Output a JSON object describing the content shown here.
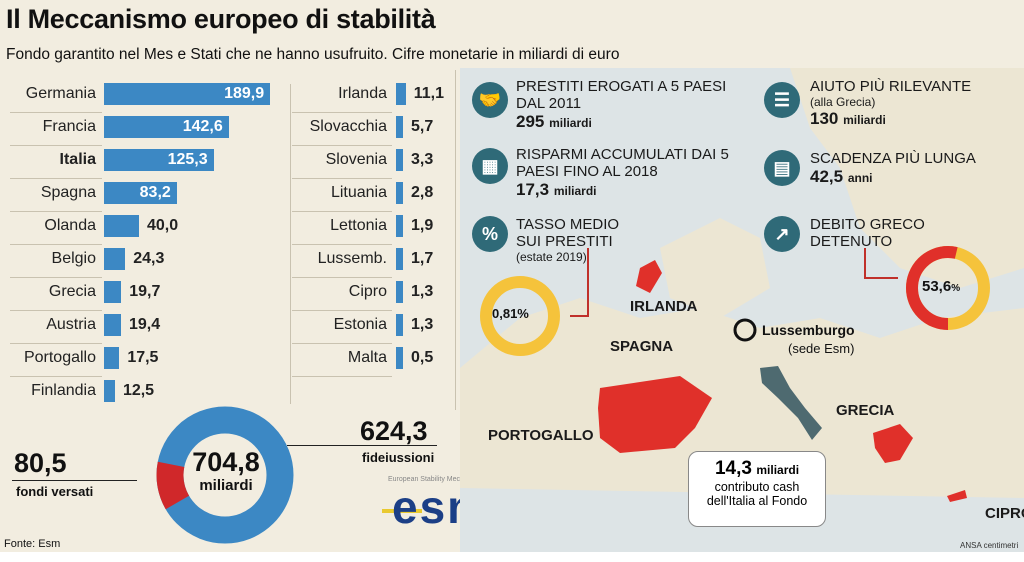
{
  "header": {
    "title": "Il Meccanismo europeo di stabilità",
    "subtitle": "Fondo garantito nel Mes e Stati che ne hanno usufruito. Cifre monetarie in miliardi di euro"
  },
  "chart_data": [
    {
      "type": "bar",
      "orientation": "horizontal",
      "categories": [
        "Germania",
        "Francia",
        "Italia",
        "Spagna",
        "Olanda",
        "Belgio",
        "Grecia",
        "Austria",
        "Portogallo",
        "Finlandia",
        "Irlanda",
        "Slovacchia",
        "Slovenia",
        "Lituania",
        "Lettonia",
        "Lussemb.",
        "Cipro",
        "Estonia",
        "Malta"
      ],
      "values": [
        189.9,
        142.6,
        125.3,
        83.2,
        40.0,
        24.3,
        19.7,
        19.4,
        17.5,
        12.5,
        11.1,
        5.7,
        3.3,
        2.8,
        1.9,
        1.7,
        1.3,
        1.3,
        0.5
      ],
      "labels": [
        "189,9",
        "142,6",
        "125,3",
        "83,2",
        "40,0",
        "24,3",
        "19,7",
        "19,4",
        "17,5",
        "12,5",
        "11,1",
        "5,7",
        "3,3",
        "2,8",
        "1,9",
        "1,7",
        "1,3",
        "1,3",
        "0,5"
      ],
      "highlight": "Italia",
      "color": "#3c88c4"
    },
    {
      "type": "pie",
      "donut": true,
      "center_value": "704,8",
      "center_unit": "miliardi",
      "slices": [
        {
          "name": "fideiussioni",
          "value": 624.3,
          "label": "624,3",
          "color": "#3c88c4"
        },
        {
          "name": "fondi versati",
          "value": 80.5,
          "label": "80,5",
          "color": "#d0282a"
        }
      ]
    },
    {
      "type": "pie",
      "donut": true,
      "name": "TASSO MEDIO SUI PRESTITI",
      "value_label": "0,81%",
      "value": 0.81,
      "color": "#f5c33b"
    },
    {
      "type": "pie",
      "donut": true,
      "name": "DEBITO GRECO DETENUTO",
      "value_label": "53,6",
      "value_unit": "%",
      "value": 53.6,
      "colors": [
        "#e0302a",
        "#f5c33b"
      ]
    }
  ],
  "stats": [
    {
      "icon": "handshake-icon",
      "heading": "PRESTITI EROGATI A 5 PAESI DAL 2011",
      "value": "295",
      "unit": "miliardi"
    },
    {
      "icon": "coins-icon",
      "heading": "RISPARMI ACCUMULATI DAI 5 PAESI FINO AL 2018",
      "value": "17,3",
      "unit": "miliardi"
    },
    {
      "icon": "percent-icon",
      "heading": "TASSO MEDIO SUI PRESTITI",
      "sub": "(estate 2019)"
    },
    {
      "icon": "greek-flag-icon",
      "heading": "AIUTO PIÙ RILEVANTE",
      "sub": "(alla Grecia)",
      "value": "130",
      "unit": "miliardi"
    },
    {
      "icon": "calendar-icon",
      "heading": "SCADENZA PIÙ LUNGA",
      "value": "42,5",
      "unit": "anni"
    },
    {
      "icon": "chart-up-icon",
      "heading": "DEBITO GRECO DETENUTO"
    }
  ],
  "map": {
    "countries": [
      "IRLANDA",
      "SPAGNA",
      "PORTOGALLO",
      "GRECIA",
      "CIPRO"
    ],
    "lux_name": "Lussemburgo",
    "lux_sub": "(sede Esm)",
    "italy_value": "14,3",
    "italy_unit": "miliardi",
    "italy_text1": "contributo cash",
    "italy_text2": "dell'Italia al Fondo"
  },
  "logo": {
    "small": "European Stability Mechanism",
    "text": "esm"
  },
  "footer": {
    "source": "Fonte: Esm",
    "credit": "ANSA centimetri"
  }
}
